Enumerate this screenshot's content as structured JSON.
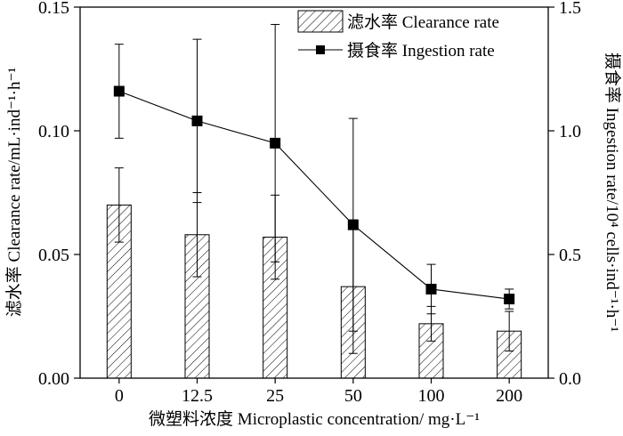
{
  "chart_data": {
    "type": "bar",
    "categories": [
      "0",
      "12.5",
      "25",
      "50",
      "100",
      "200"
    ],
    "series": [
      {
        "name": "滤水率 Clearance rate",
        "kind": "bar",
        "axis": "left",
        "values": [
          0.07,
          0.058,
          0.057,
          0.037,
          0.022,
          0.019
        ],
        "error": [
          0.015,
          0.017,
          0.017,
          0.027,
          0.007,
          0.008
        ]
      },
      {
        "name": "摄食率 Ingestion rate",
        "kind": "line",
        "axis": "right",
        "values": [
          1.16,
          1.04,
          0.95,
          0.62,
          0.36,
          0.32
        ],
        "error": [
          0.19,
          0.33,
          0.48,
          0.43,
          0.1,
          0.04
        ]
      }
    ],
    "xlabel": "微塑料浓度 Microplastic concentration/ mg·L⁻¹",
    "ylabel": "滤水率 Clearance rate/mL·ind⁻¹·h⁻¹",
    "y2label": "摄食率 Ingestion rate/10⁴ cells·ind⁻¹·h⁻¹",
    "ylim": [
      0,
      0.15
    ],
    "y2lim": [
      0,
      1.5
    ],
    "yticks": [
      "0.00",
      "0.05",
      "0.10",
      "0.15"
    ],
    "y2ticks": [
      "0.0",
      "0.5",
      "1.0",
      "1.5"
    ],
    "legend_position": "top-right",
    "grid": false
  }
}
